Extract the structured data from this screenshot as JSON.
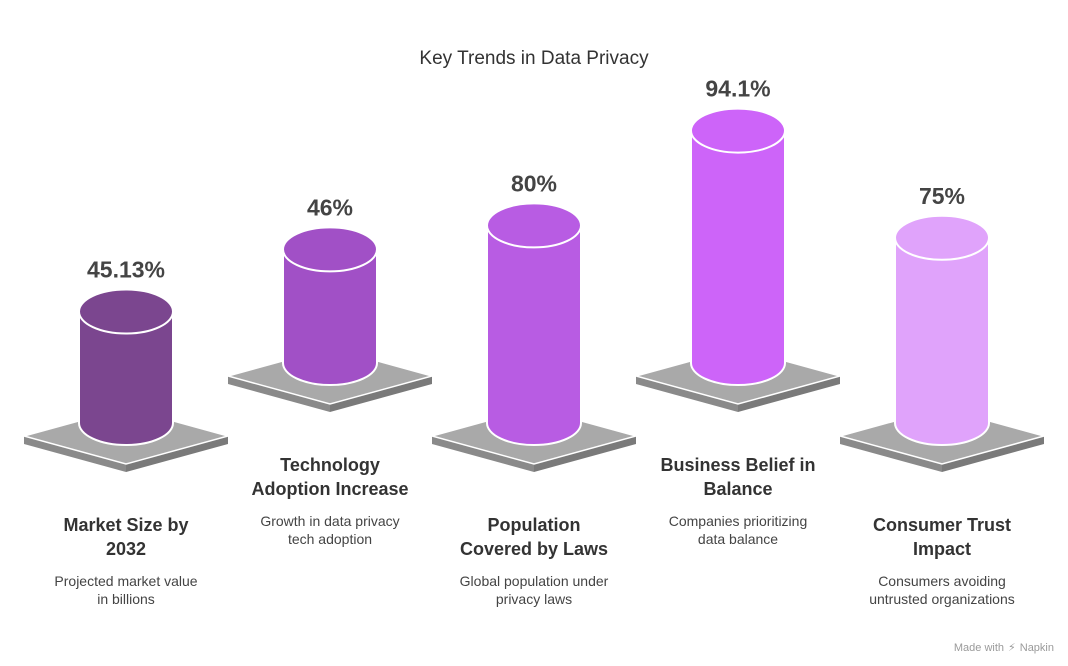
{
  "title": "Key Trends in Data Privacy",
  "watermark": {
    "prefix": "Made with",
    "brand": "Napkin"
  },
  "chart_data": {
    "type": "bar",
    "title": "Key Trends in Data Privacy",
    "categories": [
      "Market Size by 2032",
      "Technology Adoption Increase",
      "Population Covered by Laws",
      "Business Belief in Balance",
      "Consumer Trust Impact"
    ],
    "values": [
      45.13,
      46,
      80,
      94.1,
      75
    ],
    "value_labels": [
      "45.13%",
      "46%",
      "80%",
      "94.1%",
      "75%"
    ],
    "bars": [
      {
        "value_label": "45.13%",
        "label_lines": [
          "Market Size by",
          "2032"
        ],
        "desc_lines": [
          "Projected market value",
          "in billions"
        ],
        "color": "#7b468f"
      },
      {
        "value_label": "46%",
        "label_lines": [
          "Technology",
          "Adoption Increase"
        ],
        "desc_lines": [
          "Growth in data privacy",
          "tech adoption"
        ],
        "color": "#a150c6"
      },
      {
        "value_label": "80%",
        "label_lines": [
          "Population",
          "Covered by Laws"
        ],
        "desc_lines": [
          "Global population under",
          "privacy laws"
        ],
        "color": "#b85ce3"
      },
      {
        "value_label": "94.1%",
        "label_lines": [
          "Business Belief in",
          "Balance"
        ],
        "desc_lines": [
          "Companies prioritizing",
          "data balance"
        ],
        "color": "#cd64f9"
      },
      {
        "value_label": "75%",
        "label_lines": [
          "Consumer Trust",
          "Impact"
        ],
        "desc_lines": [
          "Consumers avoiding",
          "untrusted organizations"
        ],
        "color": "#e0a3fb"
      }
    ]
  }
}
